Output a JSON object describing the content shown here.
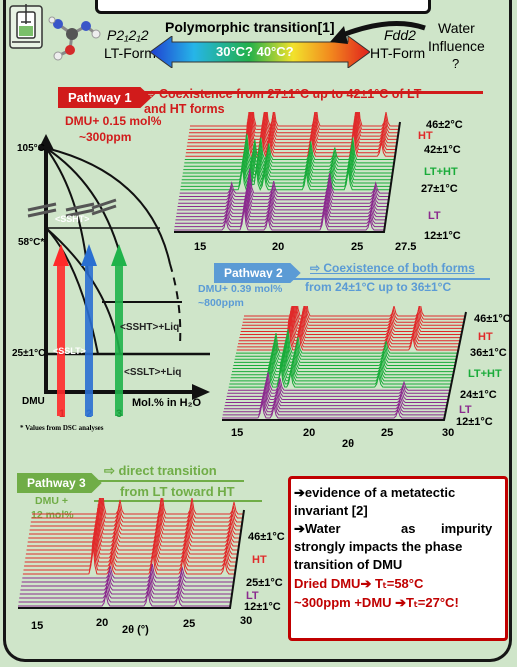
{
  "header": {
    "title": "Polymorphic transition[1]",
    "lt_form_symbol": "P2₁2₁2",
    "lt_form_label": "LT-Form",
    "ht_form_symbol": "Fdd2",
    "ht_form_label": "HT-Form",
    "temp_range": "30°C? 40°C?",
    "water_label": "Water",
    "influence_label": "Influence",
    "question_mark": "?"
  },
  "pathway1": {
    "badge": "Pathway 1",
    "description_line1": "⇨ Coexistence from 27±1°C up to 42±1°C of LT",
    "description_line2": "and HT forms",
    "composition_line1": "DMU+ 0.15 mol%",
    "composition_line2": "~300ppm",
    "labels": {
      "t_top": "46±2°C",
      "ht": "HT",
      "t_mid": "42±1°C",
      "lt_ht": "LT+HT",
      "t_low": "27±1°C",
      "lt": "LT",
      "t_bottom": "12±1°C"
    },
    "xticks": [
      "15",
      "20",
      "25",
      "27.5"
    ]
  },
  "phase_diagram": {
    "y_105": "105°C",
    "y_58": "58°C*",
    "y_25": "25±1°C",
    "ss_ht": "<SSHT>",
    "ss_lt": "<SSLT>",
    "ss_ht_liq": "<SSHT>+Liq",
    "ss_lt_liq": "<SSLT>+Liq",
    "dmu": "DMU",
    "xlabel": "Mol.% in H₂O",
    "arrow1": "1",
    "arrow2": "2",
    "arrow3": "3",
    "footnote": "* Values from DSC analyses"
  },
  "pathway2": {
    "badge": "Pathway 2",
    "description_line1": "⇨ Coexistence of both forms",
    "description_line2": "from 24±1°C up to 36±1°C",
    "composition_line1": "DMU+ 0.39 mol%",
    "composition_line2": "~800ppm",
    "labels": {
      "t_top": "46±1°C",
      "ht": "HT",
      "t_mid": "36±1°C",
      "lt_ht": "LT+HT",
      "t_low": "24±1°C",
      "lt": "LT",
      "t_bottom": "12±1°C"
    },
    "xticks": [
      "15",
      "20",
      "25",
      "30"
    ],
    "xlabel": "2θ"
  },
  "pathway3": {
    "badge": "Pathway 3",
    "description_line1": "⇨ direct transition",
    "description_line2": "from LT toward HT",
    "composition_line1": "DMU +",
    "composition_line2": "12 mol%",
    "labels": {
      "t_top": "46±1°C",
      "ht": "HT",
      "t_low": "25±1°C",
      "lt": "LT",
      "t_bottom": "12±1°C"
    },
    "xticks": [
      "15",
      "20",
      "25",
      "30"
    ],
    "xlabel": "2θ (°)"
  },
  "conclusion": {
    "line1": "➔evidence of a metatectic",
    "line2": "invariant [2]",
    "line3a": "➔Water",
    "line3b": "as",
    "line3c": "impurity",
    "line4": "strongly impacts the phase",
    "line5": "transition of DMU",
    "line6": "Dried DMU➔ Tₜ=58°C",
    "line7": "~300ppm +DMU ➔Tₜ=27°C!"
  },
  "colors": {
    "ht": "#e02a2a",
    "lt_ht": "#1aab3a",
    "lt": "#8b2b8e",
    "pathway1": "#d11b1b",
    "pathway2": "#5b9bd5",
    "pathway3": "#70ad47",
    "conclusion_border": "#c00000"
  }
}
